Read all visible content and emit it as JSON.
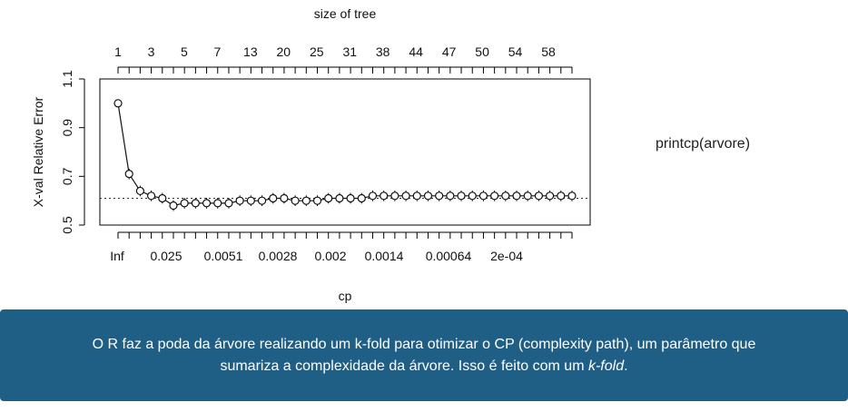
{
  "chart_data": {
    "type": "line",
    "title": "",
    "top_axis_label": "size of tree",
    "xlabel": "cp",
    "ylabel": "X-val Relative Error",
    "ylim": [
      0.5,
      1.1
    ],
    "yticks": [
      "0.5",
      "0.7",
      "0.9",
      "1.1"
    ],
    "top_tick_labels": [
      "1",
      "3",
      "5",
      "7",
      "13",
      "20",
      "25",
      "31",
      "38",
      "44",
      "47",
      "50",
      "54",
      "58"
    ],
    "bottom_tick_labels": [
      "Inf",
      "0.025",
      "0.0051",
      "0.0028",
      "0.002",
      "0.0014",
      "0.00064",
      "2e-04"
    ],
    "reference_line_y": 0.61,
    "series": [
      {
        "values": [
          1.0,
          0.71,
          0.64,
          0.62,
          0.61,
          0.58,
          0.59,
          0.59,
          0.59,
          0.59,
          0.59,
          0.6,
          0.6,
          0.6,
          0.61,
          0.61,
          0.6,
          0.6,
          0.6,
          0.61,
          0.61,
          0.61,
          0.61,
          0.62,
          0.62,
          0.62,
          0.62,
          0.62,
          0.62,
          0.62,
          0.62,
          0.62,
          0.62,
          0.62,
          0.62,
          0.62,
          0.62,
          0.62,
          0.62,
          0.62,
          0.62,
          0.62
        ]
      }
    ],
    "grid": false
  },
  "side_note": "printcp(arvore)",
  "banner": {
    "line1": "O R faz a poda da árvore realizando um k-fold para otimizar o CP (complexity path), um parâmetro que",
    "line2_start": "sumariza a complexidade da árvore. Isso é feito com um ",
    "line2_em": "k-fold",
    "line2_end": "."
  }
}
